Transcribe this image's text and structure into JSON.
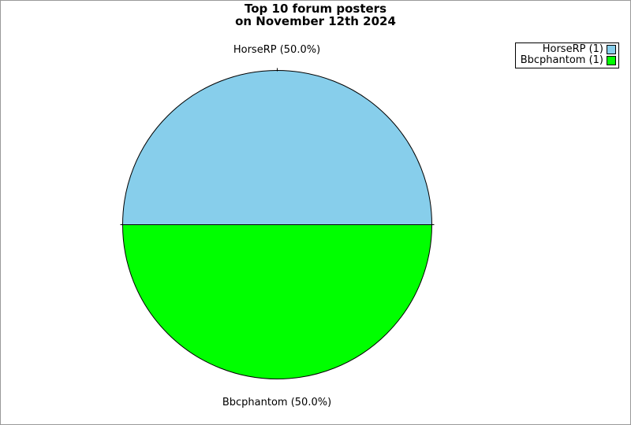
{
  "frame": {
    "background_color": "#ffffff",
    "border_color": "#999999"
  },
  "title": {
    "line1": "Top 10 forum posters",
    "line2": "on November 12th 2024"
  },
  "chart_data": {
    "type": "pie",
    "title": "Top 10 forum posters on November 12th 2024",
    "start_angle_deg": 180,
    "direction": "clockwise",
    "stroke_color": "#000000",
    "legend_position": "top-right",
    "slices": [
      {
        "label": "HorseRP",
        "value": 1,
        "percent": 50.0,
        "color": "#87CEEB",
        "callout": "HorseRP (50.0%)"
      },
      {
        "label": "Bbcphantom",
        "value": 1,
        "percent": 50.0,
        "color": "#00FF00",
        "callout": "Bbcphantom (50.0%)"
      }
    ]
  },
  "labels": {
    "top": "HorseRP (50.0%)",
    "bottom": "Bbcphantom (50.0%)"
  },
  "legend": {
    "items": [
      {
        "label": "HorseRP (1)",
        "color": "#87CEEB"
      },
      {
        "label": "Bbcphantom (1)",
        "color": "#00FF00"
      }
    ]
  }
}
